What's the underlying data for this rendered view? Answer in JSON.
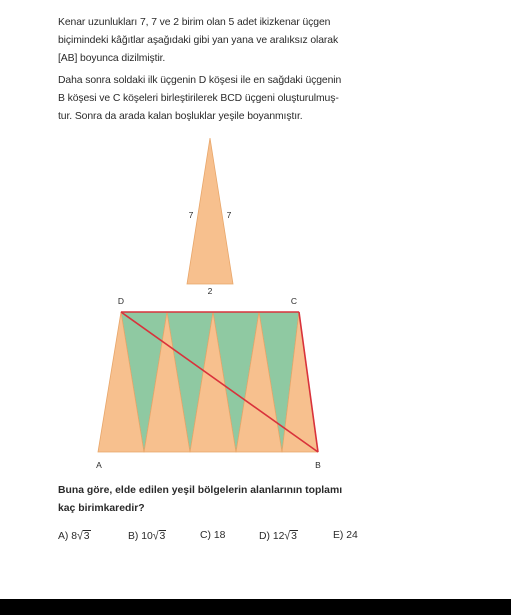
{
  "intro": {
    "lines": [
      "Kenar uzunlukları 7, 7 ve 2 birim olan 5 adet ikizkenar üçgen",
      "biçimindeki kâğıtlar aşağıdaki gibi yan yana ve aralıksız olarak",
      "[AB] boyunca dizilmiştir."
    ]
  },
  "step": {
    "lines": [
      "Daha sonra soldaki ilk üçgenin D köşesi ile en sağdaki üçgenin",
      "B köşesi ve C köşeleri birleştirilerek BCD üçgeni oluşturulmuş-",
      "tur. Sonra da arada kalan boşluklar yeşile boyanmıştır."
    ]
  },
  "figure": {
    "side_label_left": "7",
    "side_label_right": "7",
    "base_label": "2",
    "vertex_D": "D",
    "vertex_C": "C",
    "vertex_A": "A",
    "vertex_B": "B",
    "colors": {
      "triangle_fill": "#f7c08e",
      "triangle_stroke": "#e8a66a",
      "green_fill": "#8fc9a2",
      "line_red": "#d9323b"
    }
  },
  "question": {
    "lines": [
      "Buna göre, elde edilen yeşil bölgelerin alanlarının toplamı",
      "kaç birimkaredir?"
    ]
  },
  "options": [
    {
      "letter": "A)",
      "coef": "8",
      "radicand": "3"
    },
    {
      "letter": "B)",
      "coef": "10",
      "radicand": "3"
    },
    {
      "letter": "C)",
      "value": "18"
    },
    {
      "letter": "D)",
      "coef": "12",
      "radicand": "3"
    },
    {
      "letter": "E)",
      "value": "24"
    }
  ],
  "bottom_bar_color": "#000000"
}
